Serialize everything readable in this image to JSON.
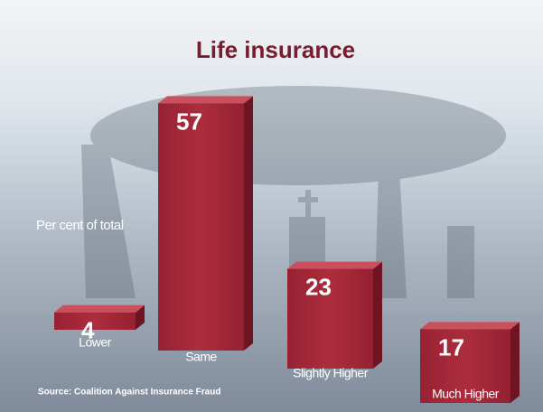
{
  "chart_data": {
    "type": "bar3d",
    "title": "Life insurance",
    "y_label": "Per cent of total",
    "categories": [
      "Lower",
      "Same",
      "Slightly Higher",
      "Much Higher"
    ],
    "values": [
      4,
      57,
      23,
      17
    ],
    "color": "#a3283a",
    "source": "Source: Coalition Against Insurance Fraud"
  }
}
